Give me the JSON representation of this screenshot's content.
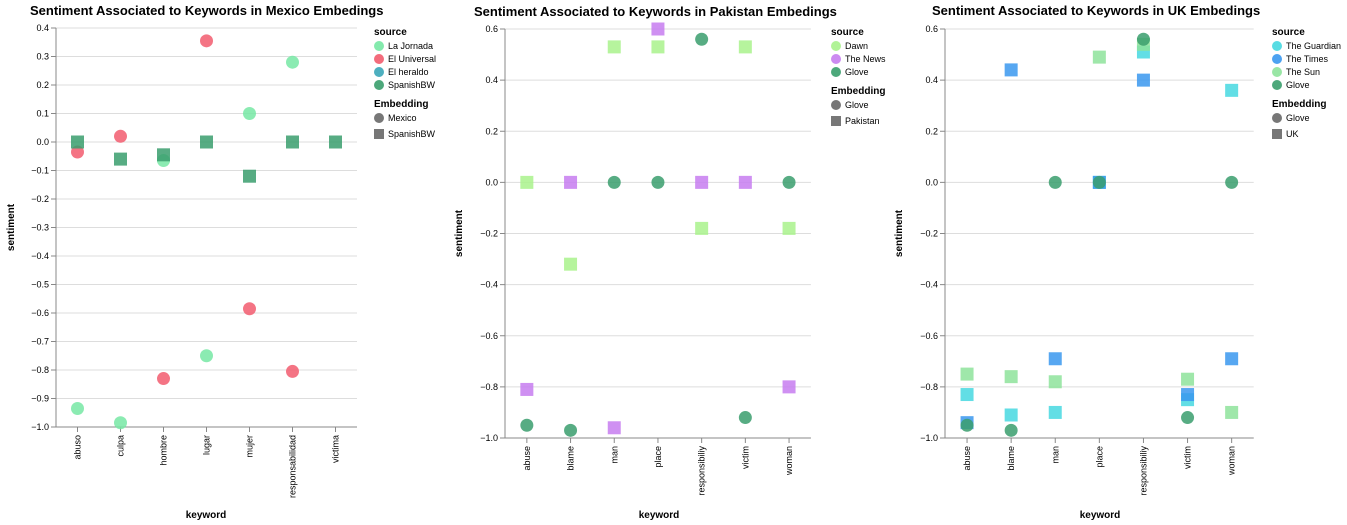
{
  "chart_data": [
    {
      "type": "scatter",
      "title": "Sentiment Associated to Keywords in Mexico Embedings",
      "xlabel": "keyword",
      "ylabel": "sentiment",
      "categories": [
        "abuso",
        "culpa",
        "hombre",
        "lugar",
        "mujer",
        "responsabilidad",
        "victima"
      ],
      "ylim": [
        -1.0,
        0.4
      ],
      "yticks": [
        0.4,
        0.3,
        0.2,
        0.1,
        0.0,
        -0.1,
        -0.2,
        -0.3,
        -0.4,
        -0.5,
        -0.6,
        -0.7,
        -0.8,
        -0.9,
        -1.0
      ],
      "ytick_labels": [
        "0.4",
        "0.3",
        "0.2",
        "0.1",
        "0.0",
        "−0.1",
        "−0.2",
        "−0.3",
        "−0.4",
        "−0.5",
        "−0.6",
        "−0.7",
        "−0.8",
        "−0.9",
        "−1.0"
      ],
      "grid": true,
      "legend": {
        "placement": "right",
        "source_title": "source",
        "sources": [
          {
            "name": "La Jornada",
            "color": "#77e8a4"
          },
          {
            "name": "El Universal",
            "color": "#f25c6e"
          },
          {
            "name": "El heraldo",
            "color": "#3aa6b8"
          },
          {
            "name": "SpanishBW",
            "color": "#3a9e6d"
          }
        ],
        "embedding_title": "Embedding",
        "embeddings": [
          {
            "name": "Mexico",
            "shape": "circle"
          },
          {
            "name": "SpanishBW",
            "shape": "square"
          }
        ]
      },
      "series": [
        {
          "name": "La Jornada",
          "shape": "circle",
          "color": "#77e8a4",
          "points": [
            [
              "abuso",
              -0.935
            ],
            [
              "culpa",
              -0.985
            ],
            [
              "hombre",
              -0.065
            ],
            [
              "lugar",
              -0.75
            ],
            [
              "mujer",
              0.1
            ],
            [
              "responsabilidad",
              0.28
            ]
          ]
        },
        {
          "name": "El Universal",
          "shape": "circle",
          "color": "#f25c6e",
          "points": [
            [
              "abuso",
              -0.035
            ],
            [
              "culpa",
              0.02
            ],
            [
              "hombre",
              -0.83
            ],
            [
              "lugar",
              0.355
            ],
            [
              "mujer",
              -0.585
            ],
            [
              "responsabilidad",
              -0.805
            ]
          ]
        },
        {
          "name": "SpanishBW",
          "shape": "square",
          "color": "#3a9e6d",
          "points": [
            [
              "abuso",
              0.0
            ],
            [
              "culpa",
              -0.06
            ],
            [
              "hombre",
              -0.045
            ],
            [
              "lugar",
              0.0
            ],
            [
              "mujer",
              -0.12
            ],
            [
              "responsabilidad",
              0.0
            ],
            [
              "victima",
              0.0
            ]
          ]
        }
      ]
    },
    {
      "type": "scatter",
      "title": "Sentiment Associated to Keywords in Pakistan Embedings",
      "xlabel": "keyword",
      "ylabel": "sentiment",
      "categories": [
        "abuse",
        "blame",
        "man",
        "place",
        "responsibiliy",
        "victim",
        "woman"
      ],
      "ylim": [
        -1.0,
        0.6
      ],
      "yticks": [
        0.6,
        0.4,
        0.2,
        0.0,
        -0.2,
        -0.4,
        -0.6,
        -0.8,
        -1.0
      ],
      "ytick_labels": [
        "0.6",
        "0.4",
        "0.2",
        "0.0",
        "−0.2",
        "−0.4",
        "−0.6",
        "−0.8",
        "−1.0"
      ],
      "grid": true,
      "legend": {
        "placement": "right",
        "source_title": "source",
        "sources": [
          {
            "name": "Dawn",
            "color": "#a9f28c"
          },
          {
            "name": "The News",
            "color": "#c77df0"
          },
          {
            "name": "Glove",
            "color": "#3a9e6d"
          }
        ],
        "embedding_title": "Embedding",
        "embeddings": [
          {
            "name": "Glove",
            "shape": "circle"
          },
          {
            "name": "Pakistan",
            "shape": "square"
          }
        ]
      },
      "series": [
        {
          "name": "Dawn",
          "shape": "square",
          "color": "#a9f28c",
          "points": [
            [
              "abuse",
              0.0
            ],
            [
              "blame",
              -0.32
            ],
            [
              "man",
              0.53
            ],
            [
              "place",
              0.53
            ],
            [
              "responsibiliy",
              -0.18
            ],
            [
              "victim",
              0.53
            ],
            [
              "woman",
              -0.18
            ]
          ]
        },
        {
          "name": "The News",
          "shape": "square",
          "color": "#c77df0",
          "points": [
            [
              "abuse",
              -0.81
            ],
            [
              "blame",
              0.0
            ],
            [
              "man",
              -0.96
            ],
            [
              "place",
              0.6
            ],
            [
              "responsibiliy",
              0.0
            ],
            [
              "victim",
              0.0
            ],
            [
              "woman",
              -0.8
            ]
          ]
        },
        {
          "name": "Glove",
          "shape": "circle",
          "color": "#3a9e6d",
          "points": [
            [
              "abuse",
              -0.95
            ],
            [
              "blame",
              -0.97
            ],
            [
              "man",
              0.0
            ],
            [
              "place",
              0.0
            ],
            [
              "responsibiliy",
              0.56
            ],
            [
              "victim",
              -0.92
            ],
            [
              "woman",
              0.0
            ]
          ]
        }
      ]
    },
    {
      "type": "scatter",
      "title": "Sentiment Associated to Keywords in UK Embedings",
      "xlabel": "keyword",
      "ylabel": "sentiment",
      "categories": [
        "abuse",
        "blame",
        "man",
        "place",
        "responsibiliy",
        "victim",
        "woman"
      ],
      "ylim": [
        -1.0,
        0.6
      ],
      "yticks": [
        0.6,
        0.4,
        0.2,
        0.0,
        -0.2,
        -0.4,
        -0.6,
        -0.8,
        -1.0
      ],
      "ytick_labels": [
        "0.6",
        "0.4",
        "0.2",
        "0.0",
        "−0.2",
        "−0.4",
        "−0.6",
        "−0.8",
        "−1.0"
      ],
      "grid": true,
      "legend": {
        "placement": "right",
        "source_title": "source",
        "sources": [
          {
            "name": "The Guardian",
            "color": "#46d8e0"
          },
          {
            "name": "The Times",
            "color": "#3a98ef"
          },
          {
            "name": "The Sun",
            "color": "#8ee39b"
          },
          {
            "name": "Glove",
            "color": "#3a9e6d"
          }
        ],
        "embedding_title": "Embedding",
        "embeddings": [
          {
            "name": "Glove",
            "shape": "circle"
          },
          {
            "name": "UK",
            "shape": "square"
          }
        ]
      },
      "series": [
        {
          "name": "The Guardian",
          "shape": "square",
          "color": "#46d8e0",
          "points": [
            [
              "abuse",
              -0.83
            ],
            [
              "blame",
              -0.91
            ],
            [
              "man",
              -0.9
            ],
            [
              "place",
              0.0
            ],
            [
              "responsibiliy",
              0.51
            ],
            [
              "victim",
              -0.85
            ],
            [
              "woman",
              0.36
            ]
          ]
        },
        {
          "name": "The Times",
          "shape": "square",
          "color": "#3a98ef",
          "points": [
            [
              "abuse",
              -0.94
            ],
            [
              "blame",
              0.44
            ],
            [
              "man",
              -0.69
            ],
            [
              "place",
              0.0
            ],
            [
              "responsibiliy",
              0.4
            ],
            [
              "victim",
              -0.83
            ],
            [
              "woman",
              -0.69
            ]
          ]
        },
        {
          "name": "The Sun",
          "shape": "square",
          "color": "#8ee39b",
          "points": [
            [
              "abuse",
              -0.75
            ],
            [
              "blame",
              -0.76
            ],
            [
              "man",
              -0.78
            ],
            [
              "place",
              0.49
            ],
            [
              "responsibiliy",
              0.54
            ],
            [
              "victim",
              -0.77
            ],
            [
              "woman",
              -0.9
            ]
          ]
        },
        {
          "name": "Glove",
          "shape": "circle",
          "color": "#3a9e6d",
          "points": [
            [
              "abuse",
              -0.95
            ],
            [
              "blame",
              -0.97
            ],
            [
              "man",
              0.0
            ],
            [
              "place",
              0.0
            ],
            [
              "responsibiliy",
              0.56
            ],
            [
              "victim",
              -0.92
            ],
            [
              "woman",
              0.0
            ]
          ]
        }
      ]
    }
  ]
}
